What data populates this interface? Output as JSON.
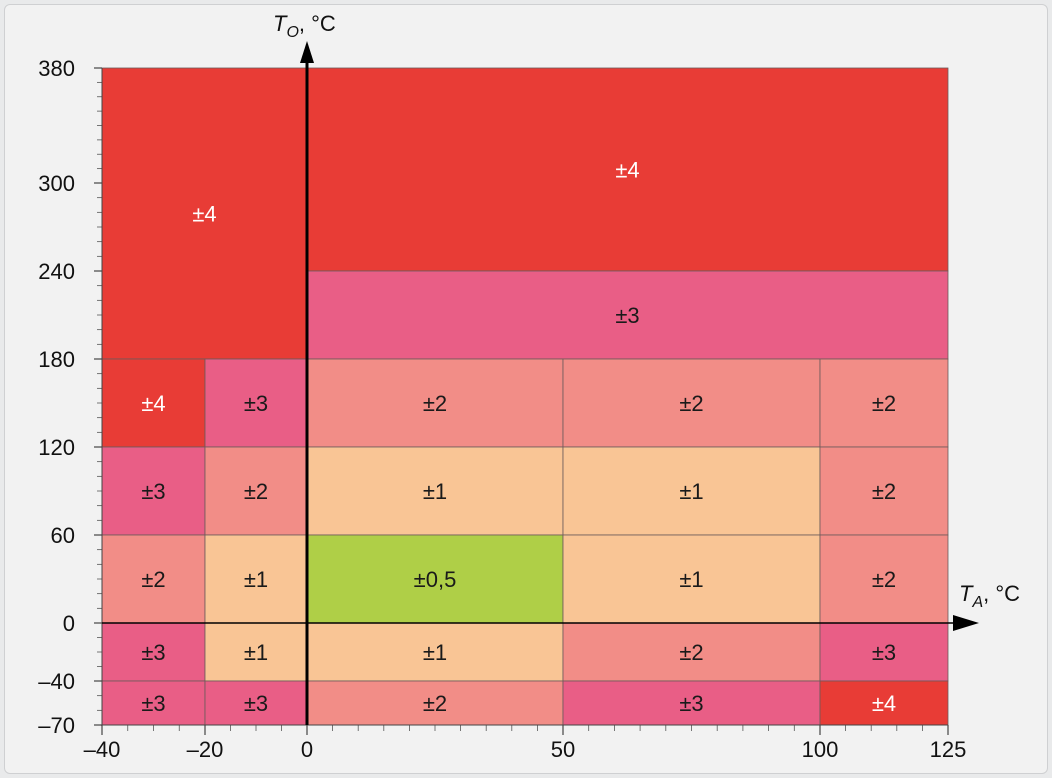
{
  "chart_data": {
    "type": "heatmap",
    "x_axis": {
      "title_symbol": "T",
      "title_subscript": "A",
      "title_unit": ", °C",
      "ticks": [
        {
          "value": -40,
          "label": "–40"
        },
        {
          "value": -20,
          "label": "–20"
        },
        {
          "value": 0,
          "label": "0"
        },
        {
          "value": 50,
          "label": "50"
        },
        {
          "value": 100,
          "label": "100"
        },
        {
          "value": 125,
          "label": "125"
        }
      ],
      "range": [
        -40,
        125
      ]
    },
    "y_axis": {
      "title_symbol": "T",
      "title_subscript": "O",
      "title_unit": ", °C",
      "ticks": [
        {
          "value": -70,
          "label": "–70"
        },
        {
          "value": -40,
          "label": "–40"
        },
        {
          "value": 0,
          "label": "0"
        },
        {
          "value": 60,
          "label": "60"
        },
        {
          "value": 120,
          "label": "120"
        },
        {
          "value": 180,
          "label": "180"
        },
        {
          "value": 240,
          "label": "240"
        },
        {
          "value": 300,
          "label": "300"
        },
        {
          "value": 380,
          "label": "380"
        }
      ],
      "range": [
        -70,
        380
      ]
    },
    "colors": {
      "4": "#e83c36",
      "3": "#e95e86",
      "2": "#f28d87",
      "1": "#f9c595",
      "0.5": "#afcf47"
    },
    "cells": [
      {
        "x": [
          -40,
          0
        ],
        "y": [
          180,
          380
        ],
        "level": "4",
        "label": "±4"
      },
      {
        "x": [
          0,
          125
        ],
        "y": [
          240,
          380
        ],
        "level": "4",
        "label": "±4"
      },
      {
        "x": [
          0,
          125
        ],
        "y": [
          180,
          240
        ],
        "level": "3",
        "label": "±3"
      },
      {
        "x": [
          -40,
          -20
        ],
        "y": [
          120,
          180
        ],
        "level": "4",
        "label": "±4"
      },
      {
        "x": [
          -20,
          0
        ],
        "y": [
          120,
          180
        ],
        "level": "3",
        "label": "±3"
      },
      {
        "x": [
          0,
          50
        ],
        "y": [
          120,
          180
        ],
        "level": "2",
        "label": "±2"
      },
      {
        "x": [
          50,
          100
        ],
        "y": [
          120,
          180
        ],
        "level": "2",
        "label": "±2"
      },
      {
        "x": [
          100,
          125
        ],
        "y": [
          120,
          180
        ],
        "level": "2",
        "label": "±2"
      },
      {
        "x": [
          -40,
          -20
        ],
        "y": [
          60,
          120
        ],
        "level": "3",
        "label": "±3"
      },
      {
        "x": [
          -20,
          0
        ],
        "y": [
          60,
          120
        ],
        "level": "2",
        "label": "±2"
      },
      {
        "x": [
          0,
          50
        ],
        "y": [
          60,
          120
        ],
        "level": "1",
        "label": "±1"
      },
      {
        "x": [
          50,
          100
        ],
        "y": [
          60,
          120
        ],
        "level": "1",
        "label": "±1"
      },
      {
        "x": [
          100,
          125
        ],
        "y": [
          60,
          120
        ],
        "level": "2",
        "label": "±2"
      },
      {
        "x": [
          -40,
          -20
        ],
        "y": [
          0,
          60
        ],
        "level": "2",
        "label": "±2"
      },
      {
        "x": [
          -20,
          0
        ],
        "y": [
          0,
          60
        ],
        "level": "1",
        "label": "±1"
      },
      {
        "x": [
          0,
          50
        ],
        "y": [
          0,
          60
        ],
        "level": "0.5",
        "label": "±0,5"
      },
      {
        "x": [
          50,
          100
        ],
        "y": [
          0,
          60
        ],
        "level": "1",
        "label": "±1"
      },
      {
        "x": [
          100,
          125
        ],
        "y": [
          0,
          60
        ],
        "level": "2",
        "label": "±2"
      },
      {
        "x": [
          -40,
          -20
        ],
        "y": [
          -40,
          0
        ],
        "level": "3",
        "label": "±3"
      },
      {
        "x": [
          -20,
          0
        ],
        "y": [
          -40,
          0
        ],
        "level": "1",
        "label": "±1"
      },
      {
        "x": [
          0,
          50
        ],
        "y": [
          -40,
          0
        ],
        "level": "1",
        "label": "±1"
      },
      {
        "x": [
          50,
          100
        ],
        "y": [
          -40,
          0
        ],
        "level": "2",
        "label": "±2"
      },
      {
        "x": [
          100,
          125
        ],
        "y": [
          -40,
          0
        ],
        "level": "3",
        "label": "±3"
      },
      {
        "x": [
          -40,
          -20
        ],
        "y": [
          -70,
          -40
        ],
        "level": "3",
        "label": "±3"
      },
      {
        "x": [
          -20,
          0
        ],
        "y": [
          -70,
          -40
        ],
        "level": "3",
        "label": "±3"
      },
      {
        "x": [
          0,
          50
        ],
        "y": [
          -70,
          -40
        ],
        "level": "2",
        "label": "±2"
      },
      {
        "x": [
          50,
          100
        ],
        "y": [
          -70,
          -40
        ],
        "level": "3",
        "label": "±3"
      },
      {
        "x": [
          100,
          125
        ],
        "y": [
          -70,
          -40
        ],
        "level": "4",
        "label": "±4"
      }
    ]
  }
}
